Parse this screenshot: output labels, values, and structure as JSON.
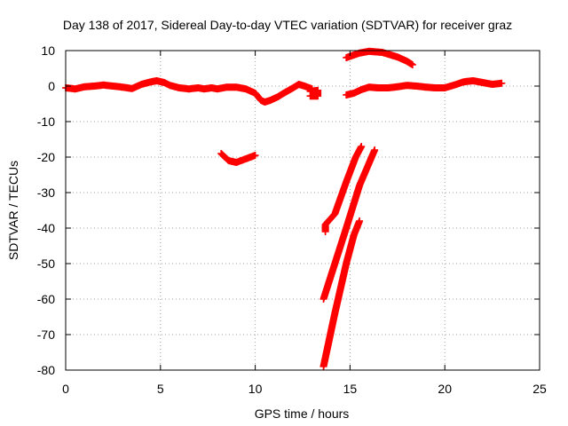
{
  "chart_data": {
    "type": "scatter",
    "title": "Day 138 of 2017, Sidereal Day-to-day VTEC variation (SDTVAR) for receiver graz",
    "xlabel": "GPS time / hours",
    "ylabel": "SDTVAR / TECUs",
    "xlim": [
      0,
      25
    ],
    "ylim": [
      -80,
      10
    ],
    "xticks": [
      0,
      5,
      10,
      15,
      20,
      25
    ],
    "yticks": [
      10,
      0,
      -10,
      -20,
      -30,
      -40,
      -50,
      -60,
      -70,
      -80
    ],
    "grid": true,
    "legend": "none",
    "marker": "plus",
    "color": "#ff0000",
    "segments": [
      {
        "points": [
          [
            0,
            -0.5
          ],
          [
            0.5,
            -0.8
          ],
          [
            1,
            -0.2
          ],
          [
            1.5,
            0
          ],
          [
            2,
            0.3
          ],
          [
            2.5,
            0
          ],
          [
            3,
            -0.3
          ],
          [
            3.5,
            -0.7
          ],
          [
            4,
            0.5
          ],
          [
            4.5,
            1.2
          ],
          [
            4.8,
            1.5
          ],
          [
            5.2,
            1
          ],
          [
            5.5,
            0.2
          ],
          [
            6,
            -0.5
          ],
          [
            6.5,
            -0.8
          ],
          [
            7,
            -0.5
          ],
          [
            7.3,
            -0.8
          ],
          [
            7.7,
            -0.5
          ],
          [
            8,
            -0.8
          ],
          [
            8.5,
            -0.3
          ],
          [
            9,
            -0.3
          ],
          [
            9.5,
            -0.8
          ],
          [
            10,
            -2
          ],
          [
            10.3,
            -4
          ],
          [
            10.5,
            -4.5
          ],
          [
            10.8,
            -4
          ],
          [
            11.2,
            -3
          ],
          [
            11.5,
            -2
          ],
          [
            12,
            -0.5
          ],
          [
            12.3,
            0.5
          ],
          [
            12.6,
            0
          ],
          [
            13,
            -0.8
          ]
        ]
      },
      {
        "points": [
          [
            12.9,
            -1.5
          ],
          [
            13.3,
            -1.2
          ],
          [
            13.3,
            -2.8
          ],
          [
            12.9,
            -2.8
          ]
        ]
      },
      {
        "points": [
          [
            14.8,
            -2.5
          ],
          [
            15.2,
            -2
          ],
          [
            15.6,
            -1
          ],
          [
            16,
            -0.3
          ],
          [
            16.5,
            -0.5
          ],
          [
            17,
            -0.5
          ],
          [
            17.5,
            -0.2
          ],
          [
            18,
            0.2
          ],
          [
            18.5,
            0
          ],
          [
            19,
            -0.3
          ],
          [
            19.5,
            -0.5
          ],
          [
            20,
            -0.5
          ],
          [
            20.5,
            0.3
          ],
          [
            21,
            1.2
          ],
          [
            21.5,
            1.5
          ],
          [
            22,
            1
          ],
          [
            22.5,
            0.5
          ],
          [
            23,
            0.8
          ]
        ]
      },
      {
        "points": [
          [
            14.8,
            8
          ],
          [
            15.5,
            9.3
          ],
          [
            16,
            9.8
          ],
          [
            16.7,
            9.5
          ],
          [
            17.5,
            8.2
          ],
          [
            18,
            7
          ],
          [
            18.3,
            6
          ]
        ]
      },
      {
        "points": [
          [
            8.2,
            -19
          ],
          [
            8.6,
            -21
          ],
          [
            9,
            -21.5
          ],
          [
            9.5,
            -20.5
          ],
          [
            10,
            -19.5
          ]
        ]
      },
      {
        "points": [
          [
            13.7,
            -41
          ],
          [
            13.7,
            -39
          ],
          [
            14.2,
            -36
          ],
          [
            14.8,
            -27
          ],
          [
            15.3,
            -20
          ],
          [
            15.6,
            -17
          ]
        ]
      },
      {
        "points": [
          [
            13.6,
            -60
          ],
          [
            14.2,
            -50
          ],
          [
            14.8,
            -40
          ],
          [
            15.5,
            -28
          ],
          [
            16.3,
            -18
          ]
        ]
      },
      {
        "points": [
          [
            13.6,
            -79
          ],
          [
            14.2,
            -64
          ],
          [
            14.8,
            -50
          ],
          [
            15.2,
            -42
          ],
          [
            15.5,
            -38
          ]
        ]
      }
    ]
  }
}
